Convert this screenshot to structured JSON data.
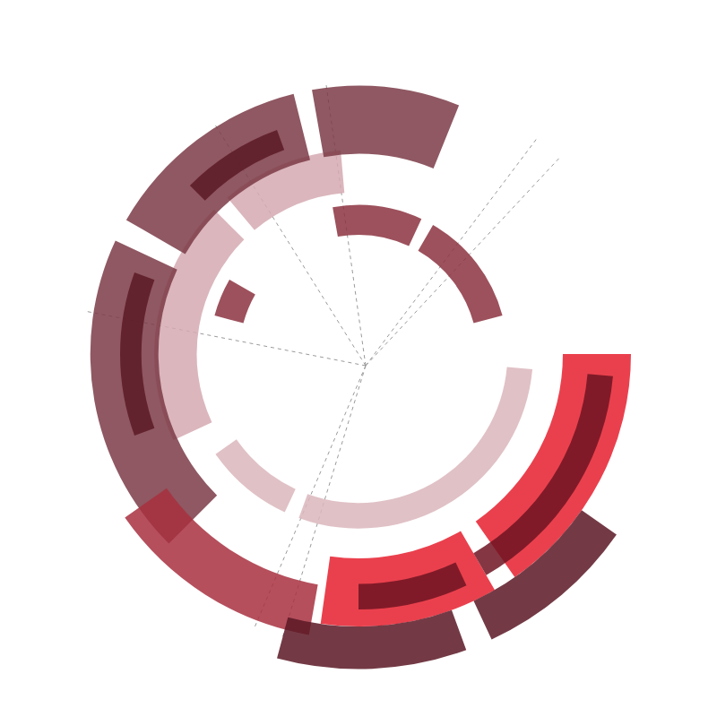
{
  "chart_data": {
    "type": "radial_arcs",
    "tick_labels": false,
    "grid": true,
    "xlim": [
      0,
      360
    ],
    "xticks": [
      47,
      53,
      98,
      122,
      169,
      247,
      253
    ],
    "ylim": [
      0,
      400
    ],
    "series": [
      {
        "color": "#dab6bc",
        "radius": [
          175,
          205
        ],
        "values": [
          [
            215,
            245
          ],
          [
            250,
            355
          ]
        ]
      },
      {
        "color": "#d5a9b1",
        "radius": [
          190,
          240
        ],
        "values": [
          [
            95,
            130
          ],
          [
            135,
            205
          ]
        ]
      },
      {
        "color": "#7b3b47",
        "radius": [
          235,
          315
        ],
        "values": [
          [
            68,
            100
          ],
          [
            104,
            150
          ],
          [
            155,
            225
          ]
        ]
      },
      {
        "color": "#5c1a26",
        "radius": [
          255,
          280
        ],
        "values": [
          [
            110,
            135
          ],
          [
            160,
            200
          ]
        ]
      },
      {
        "color": "#8c3340",
        "radius": [
          140,
          175
        ],
        "values": [
          [
            15,
            60
          ],
          [
            65,
            100
          ],
          [
            150,
            165
          ]
        ]
      },
      {
        "color": "#a8303f",
        "radius": [
          275,
          335
        ],
        "values": [
          [
            215,
            260
          ]
        ]
      },
      {
        "color": "#e61e2e",
        "radius": [
          240,
          320
        ],
        "values": [
          [
            262,
            300
          ],
          [
            305,
            360
          ]
        ]
      },
      {
        "color": "#6e1422",
        "radius": [
          270,
          300
        ],
        "values": [
          [
            270,
            295
          ],
          [
            300,
            355
          ]
        ]
      },
      {
        "color": "#5a1824",
        "radius": [
          320,
          370
        ],
        "values": [
          [
            255,
            290
          ],
          [
            295,
            325
          ]
        ]
      }
    ]
  }
}
